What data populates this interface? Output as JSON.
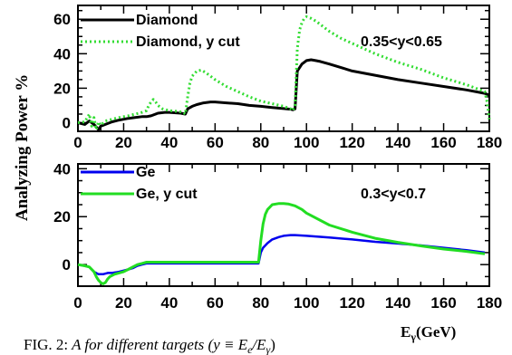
{
  "figure": {
    "ylabel": "Analyzing Power %",
    "xlabel": "E",
    "xlabel_sub": "γ",
    "xlabel_unit": "(GeV)",
    "caption_prefix": "FIG. 2:",
    "caption_text": " A for different targets (y ≡ E",
    "caption_e": "e",
    "caption_sub": "/E",
    "caption_g": "γ",
    "caption_end": ")"
  },
  "colors": {
    "diamond": "#000000",
    "diamond_ycut": "#33dd33",
    "ge": "#0000ee",
    "ge_ycut": "#22dd22"
  },
  "chart_data": [
    {
      "type": "line",
      "title": "",
      "xlabel": "",
      "ylabel": "Analyzing Power %",
      "xlim": [
        0,
        180
      ],
      "ylim": [
        -5,
        68
      ],
      "xticks": [
        "0",
        "20",
        "40",
        "60",
        "80",
        "100",
        "120",
        "140",
        "160",
        "180"
      ],
      "yticks": [
        "0",
        "20",
        "40",
        "60"
      ],
      "annotation": "0.35<y<0.65",
      "legend_position": "top-left",
      "series": [
        {
          "name": "Diamond",
          "style": "solid",
          "x": [
            0,
            3,
            5,
            7,
            9,
            10,
            12,
            15,
            18,
            20,
            22,
            25,
            28,
            30,
            32,
            35,
            38,
            40,
            45,
            47,
            48,
            50,
            52,
            55,
            58,
            60,
            65,
            70,
            75,
            80,
            85,
            90,
            93,
            94,
            95,
            96,
            98,
            100,
            102,
            104,
            106,
            110,
            120,
            130,
            140,
            150,
            160,
            170,
            178,
            180
          ],
          "y": [
            0,
            -1,
            1,
            -1,
            -4,
            -2,
            -1,
            0.5,
            1.5,
            2,
            2.5,
            3,
            3.5,
            3.5,
            4,
            5.5,
            6,
            6,
            5.5,
            5,
            8,
            9.5,
            10.5,
            11.5,
            12,
            12,
            11.5,
            11,
            10,
            9.5,
            8.8,
            8.2,
            7.8,
            7.5,
            8,
            30,
            34,
            36,
            36.5,
            36,
            35.5,
            34,
            30,
            27.5,
            25,
            23,
            21,
            19,
            17,
            16
          ]
        },
        {
          "name": "Diamond, y cut",
          "style": "dotted",
          "x": [
            0,
            3,
            5,
            6,
            7,
            8,
            9,
            10,
            12,
            15,
            18,
            20,
            22,
            25,
            28,
            30,
            31,
            32,
            33,
            34,
            35,
            37,
            40,
            44,
            46,
            47,
            48,
            49,
            50,
            52,
            54,
            56,
            58,
            60,
            65,
            70,
            75,
            80,
            85,
            90,
            93,
            94,
            95,
            96,
            97,
            98,
            99,
            100,
            101,
            102,
            104,
            106,
            108,
            110,
            115,
            120,
            130,
            140,
            150,
            160,
            170,
            178,
            179,
            180
          ],
          "y": [
            0,
            0.5,
            5,
            -2,
            3,
            -4,
            0.5,
            -1.5,
            1,
            2,
            3,
            3.5,
            4,
            5,
            6,
            7,
            10,
            12,
            13.5,
            12,
            10,
            8,
            7,
            6.5,
            6,
            5,
            15,
            23,
            27,
            30,
            30.5,
            29,
            27,
            25,
            21,
            18,
            15,
            12.5,
            11,
            9.5,
            8,
            7,
            10,
            43,
            54,
            58,
            60.5,
            61.5,
            61,
            60.5,
            59,
            57,
            55,
            53,
            49,
            46,
            40,
            35,
            31,
            26,
            22,
            18,
            12,
            2
          ]
        }
      ]
    },
    {
      "type": "line",
      "title": "",
      "xlabel": "E_γ (GeV)",
      "ylabel": "",
      "xlim": [
        0,
        180
      ],
      "ylim": [
        -9,
        42
      ],
      "xticks": [
        "0",
        "20",
        "40",
        "60",
        "80",
        "100",
        "120",
        "140",
        "160",
        "180"
      ],
      "yticks": [
        "0",
        "20",
        "40"
      ],
      "annotation": "0.3<y<0.7",
      "legend_position": "top-left",
      "series": [
        {
          "name": "Ge",
          "style": "solid",
          "x": [
            0,
            3,
            5,
            7,
            9,
            11,
            13,
            15,
            18,
            20,
            22,
            24,
            26,
            28,
            30,
            35,
            40,
            50,
            60,
            70,
            75,
            78,
            79,
            80,
            81,
            82,
            83,
            85,
            88,
            90,
            93,
            95,
            100,
            110,
            120,
            130,
            140,
            150,
            160,
            170,
            178
          ],
          "y": [
            0,
            -0.5,
            -1,
            -3,
            -4,
            -4,
            -3.5,
            -3.5,
            -3,
            -2.5,
            -2,
            -1.5,
            -0.5,
            0,
            0.5,
            0.5,
            0.5,
            0.5,
            0.5,
            0.5,
            0.5,
            0.5,
            0.5,
            5,
            7,
            8,
            9,
            10.5,
            11.5,
            12,
            12.3,
            12.3,
            12,
            11.3,
            10.5,
            9.5,
            8.8,
            8,
            7,
            6,
            5
          ]
        },
        {
          "name": "Ge, y cut",
          "style": "solid",
          "x": [
            0,
            3,
            5,
            7,
            8,
            9,
            10,
            11,
            12,
            13,
            14,
            16,
            18,
            20,
            22,
            24,
            26,
            28,
            30,
            35,
            40,
            50,
            60,
            70,
            75,
            78,
            79,
            80,
            81,
            82,
            83,
            85,
            88,
            90,
            92,
            95,
            98,
            100,
            110,
            120,
            130,
            140,
            150,
            160,
            170,
            178
          ],
          "y": [
            0,
            -0.5,
            -1,
            -3,
            -5,
            -6.5,
            -7.5,
            -8,
            -7.5,
            -6,
            -5,
            -4,
            -3.5,
            -3,
            -2,
            -1,
            0,
            0.5,
            1,
            1,
            1,
            1,
            1,
            1,
            1,
            1,
            1,
            10,
            17,
            21,
            23,
            25,
            25.5,
            25.5,
            25.3,
            24.5,
            23,
            21.5,
            16.5,
            13.5,
            11,
            9.3,
            7.8,
            6.5,
            5.5,
            4.5
          ]
        }
      ]
    }
  ]
}
